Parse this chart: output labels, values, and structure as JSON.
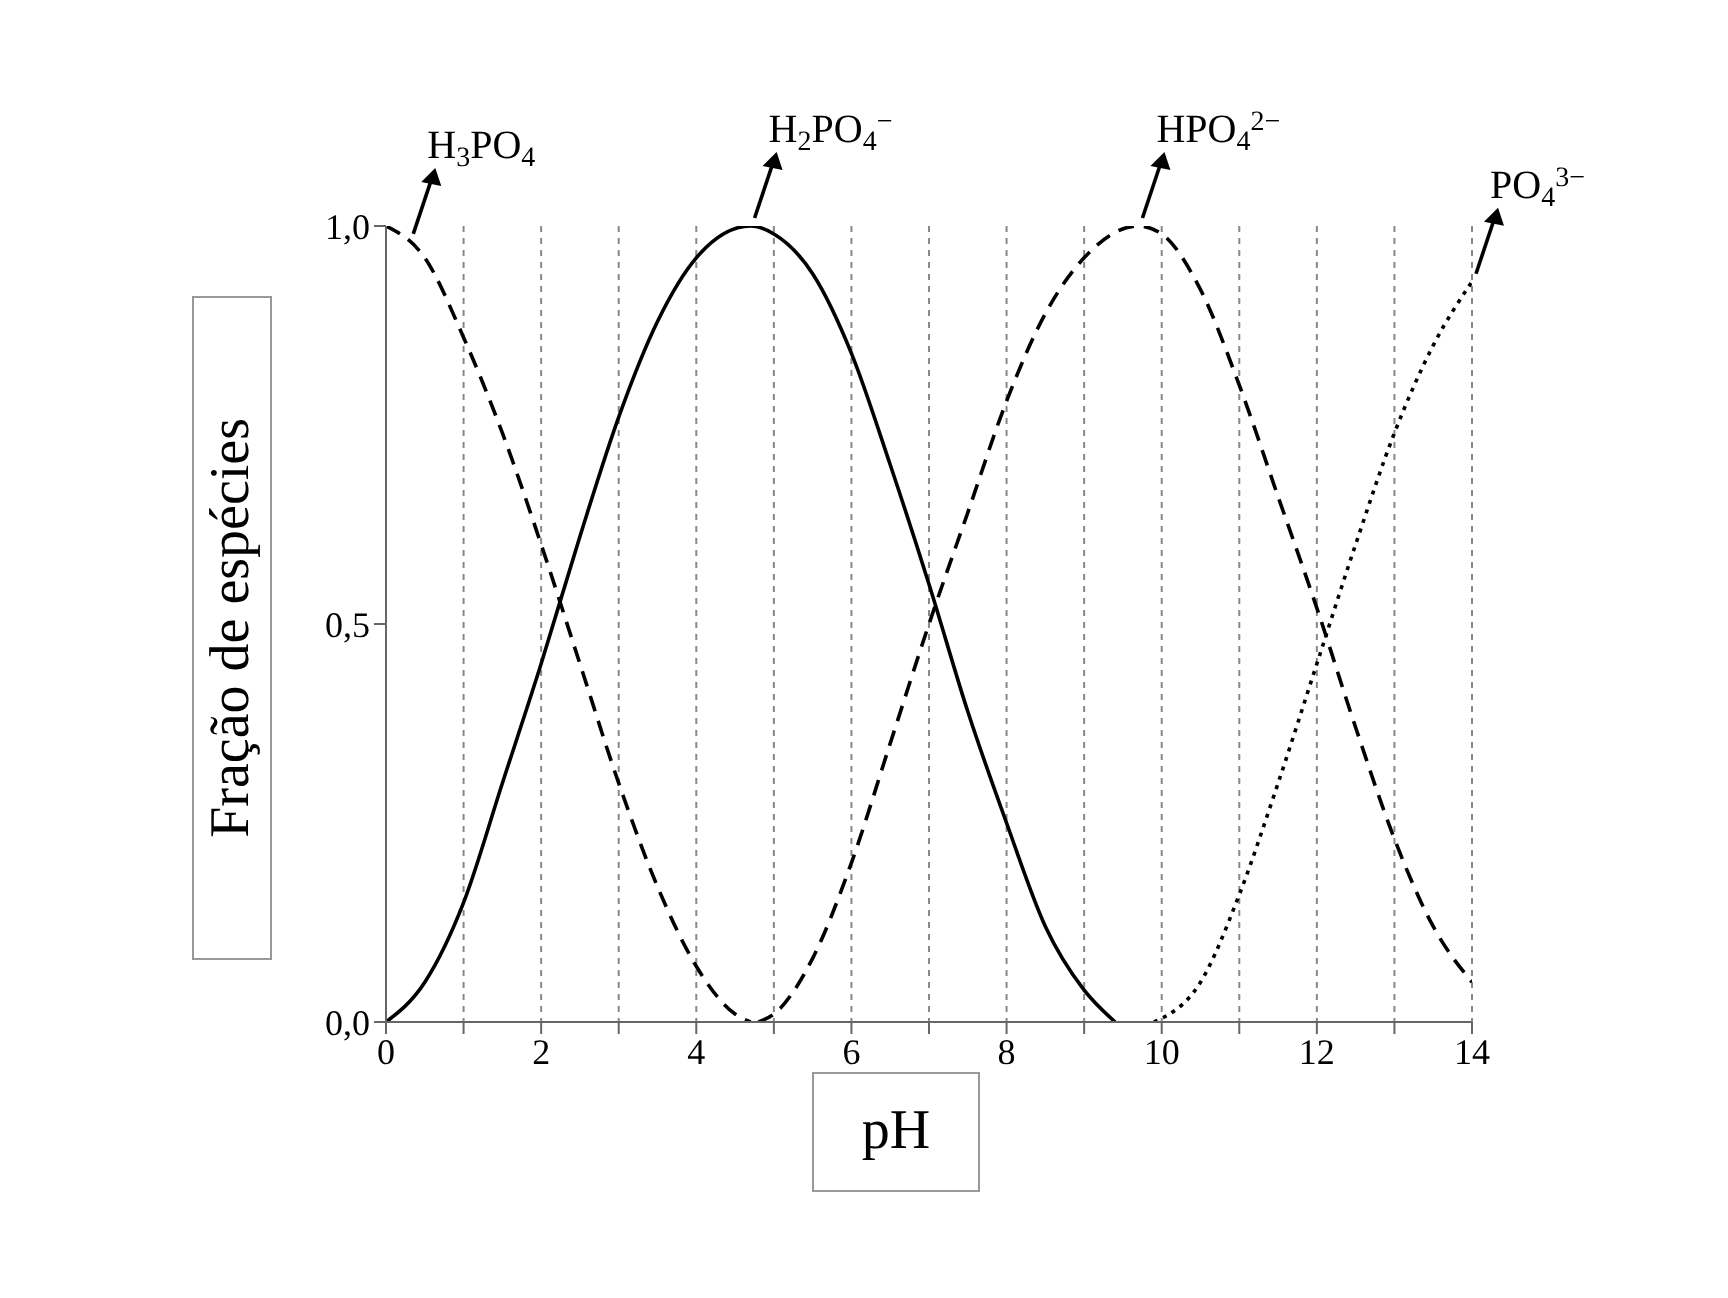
{
  "chart_data": {
    "type": "line",
    "xlabel": "pH",
    "ylabel": "Fração de espécies",
    "xlim": [
      0,
      14
    ],
    "ylim": [
      0,
      1
    ],
    "xticks": [
      0,
      {
        "value": 1,
        "label": null
      },
      2,
      {
        "value": 3,
        "label": null
      },
      4,
      {
        "value": 5,
        "label": null
      },
      6,
      {
        "value": 7,
        "label": null
      },
      8,
      {
        "value": 9,
        "label": null
      },
      10,
      {
        "value": 11,
        "label": null
      },
      12,
      {
        "value": 13,
        "label": null
      },
      14
    ],
    "yticks": [
      {
        "value": 0,
        "label": "0,0"
      },
      {
        "value": 0.5,
        "label": "0,5"
      },
      {
        "value": 1,
        "label": "1,0"
      }
    ],
    "grid": "x",
    "marker": "none",
    "series": [
      {
        "color": "#000000",
        "line_style": "dashed",
        "x": [
          0,
          0.5,
          1,
          1.5,
          2,
          2.5,
          3,
          3.5,
          4,
          4.5,
          4.7
        ],
        "values": [
          1,
          0.96,
          0.86,
          0.74,
          0.6,
          0.45,
          0.3,
          0.17,
          0.07,
          0.01,
          0
        ]
      },
      {
        "color": "#000000",
        "line_style": "solid",
        "x": [
          0,
          0.5,
          1,
          1.5,
          2,
          2.5,
          3,
          3.5,
          4,
          4.7,
          5,
          5.5,
          6,
          6.5,
          7,
          7.5,
          8,
          8.5,
          9,
          9.4
        ],
        "values": [
          0,
          0.05,
          0.15,
          0.3,
          0.45,
          0.61,
          0.76,
          0.88,
          0.96,
          1,
          0.99,
          0.94,
          0.84,
          0.7,
          0.55,
          0.39,
          0.25,
          0.12,
          0.04,
          0
        ]
      },
      {
        "color": "#000000",
        "line_style": "dashed",
        "x": [
          4.8,
          5,
          5.5,
          6,
          6.5,
          7,
          7.5,
          8,
          8.5,
          9,
          9.7,
          10,
          10.5,
          11,
          11.5,
          12,
          12.5,
          13,
          13.5,
          14
        ],
        "values": [
          0,
          0.01,
          0.08,
          0.2,
          0.35,
          0.5,
          0.64,
          0.78,
          0.89,
          0.96,
          1,
          0.99,
          0.92,
          0.8,
          0.66,
          0.52,
          0.37,
          0.23,
          0.12,
          0.05
        ]
      },
      {
        "color": "#000000",
        "line_style": "dotted",
        "x": [
          9.9,
          10.5,
          11,
          11.5,
          12,
          12.5,
          13,
          13.5,
          14
        ],
        "values": [
          0,
          0.05,
          0.16,
          0.3,
          0.45,
          0.6,
          0.74,
          0.85,
          0.93
        ]
      }
    ],
    "annotations": [
      {
        "text": "H$_{3}$PO$_{4}$",
        "x": 0.3,
        "y": 0.98
      },
      {
        "text": "H$_{2}$PO$_{4}$$^{−}$",
        "x": 4.7,
        "y": 1
      },
      {
        "text": "HPO$_{4}$$^{2−}$",
        "x": 9.7,
        "y": 1
      },
      {
        "text": "PO$_{4}$$^{3−}$",
        "x": 14,
        "y": 0.93
      }
    ]
  }
}
